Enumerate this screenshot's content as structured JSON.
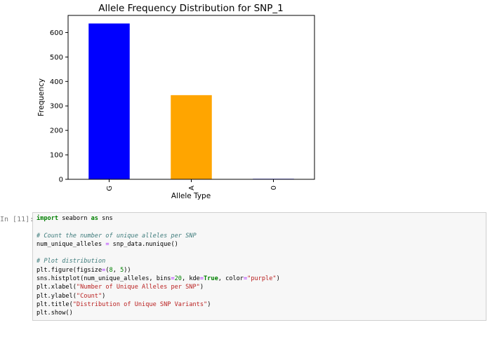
{
  "notebook": {
    "prompt": "In [11]:",
    "code_lines": [
      [
        {
          "t": "import",
          "c": "kw"
        },
        {
          "t": " seaborn ",
          "c": ""
        },
        {
          "t": "as",
          "c": "kw"
        },
        {
          "t": " sns",
          "c": ""
        }
      ],
      [],
      [
        {
          "t": "# Count the number of unique alleles per SNP",
          "c": "cm"
        }
      ],
      [
        {
          "t": "num_unique_alleles ",
          "c": ""
        },
        {
          "t": "=",
          "c": "op"
        },
        {
          "t": " snp_data.nunique()",
          "c": ""
        }
      ],
      [],
      [
        {
          "t": "# Plot distribution",
          "c": "cm"
        }
      ],
      [
        {
          "t": "plt.figure(figsize",
          "c": ""
        },
        {
          "t": "=",
          "c": "op"
        },
        {
          "t": "(",
          "c": ""
        },
        {
          "t": "8",
          "c": "num"
        },
        {
          "t": ", ",
          "c": ""
        },
        {
          "t": "5",
          "c": "num"
        },
        {
          "t": "))",
          "c": ""
        }
      ],
      [
        {
          "t": "sns.histplot(num_unique_alleles, bins",
          "c": ""
        },
        {
          "t": "=",
          "c": "op"
        },
        {
          "t": "20",
          "c": "num"
        },
        {
          "t": ", kde",
          "c": ""
        },
        {
          "t": "=",
          "c": "op"
        },
        {
          "t": "True",
          "c": "kw"
        },
        {
          "t": ", color",
          "c": ""
        },
        {
          "t": "=",
          "c": "op"
        },
        {
          "t": "\"purple\"",
          "c": "str"
        },
        {
          "t": ")",
          "c": ""
        }
      ],
      [
        {
          "t": "plt.xlabel(",
          "c": ""
        },
        {
          "t": "\"Number of Unique Alleles per SNP\"",
          "c": "str"
        },
        {
          "t": ")",
          "c": ""
        }
      ],
      [
        {
          "t": "plt.ylabel(",
          "c": ""
        },
        {
          "t": "\"Count\"",
          "c": "str"
        },
        {
          "t": ")",
          "c": ""
        }
      ],
      [
        {
          "t": "plt.title(",
          "c": ""
        },
        {
          "t": "\"Distribution of Unique SNP Variants\"",
          "c": "str"
        },
        {
          "t": ")",
          "c": ""
        }
      ],
      [
        {
          "t": "plt.show()",
          "c": ""
        }
      ]
    ]
  },
  "chart_data": {
    "type": "bar",
    "title": "Allele Frequency Distribution for SNP_1",
    "xlabel": "Allele Type",
    "ylabel": "Frequency",
    "categories": [
      "G",
      "A",
      "0"
    ],
    "values": [
      637,
      344,
      2
    ],
    "colors": [
      "#0000ff",
      "#ffa500",
      "#0000ff"
    ],
    "ylim": [
      0,
      670
    ],
    "yticks": [
      0,
      100,
      200,
      300,
      400,
      500,
      600
    ],
    "grid": false,
    "legend": "none"
  }
}
